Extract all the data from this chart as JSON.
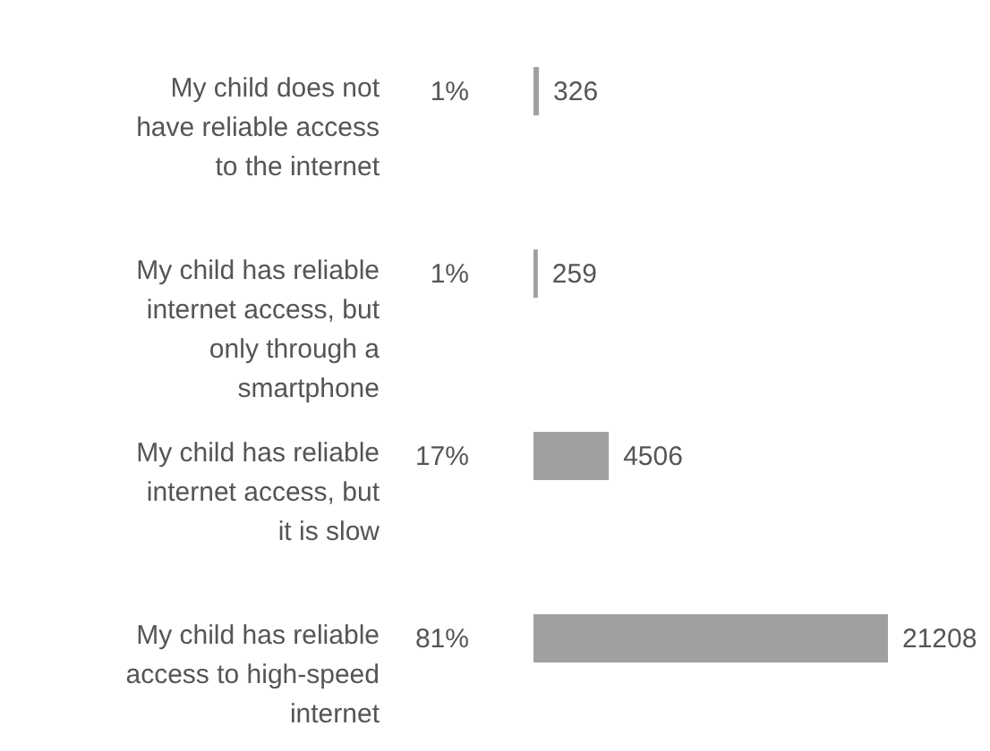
{
  "chart_data": {
    "type": "bar",
    "orientation": "horizontal",
    "data_labels": true,
    "color": "#a0a0a0",
    "categories": [
      "My child does not have reliable access to the internet",
      "My child has reliable internet access, but only through a smartphone",
      "My child has reliable internet access, but it is slow",
      "My child has reliable access to high-speed internet"
    ],
    "values": [
      326,
      259,
      4506,
      21208
    ],
    "annotations": [
      "1%",
      "1%",
      "17%",
      "81%"
    ]
  }
}
